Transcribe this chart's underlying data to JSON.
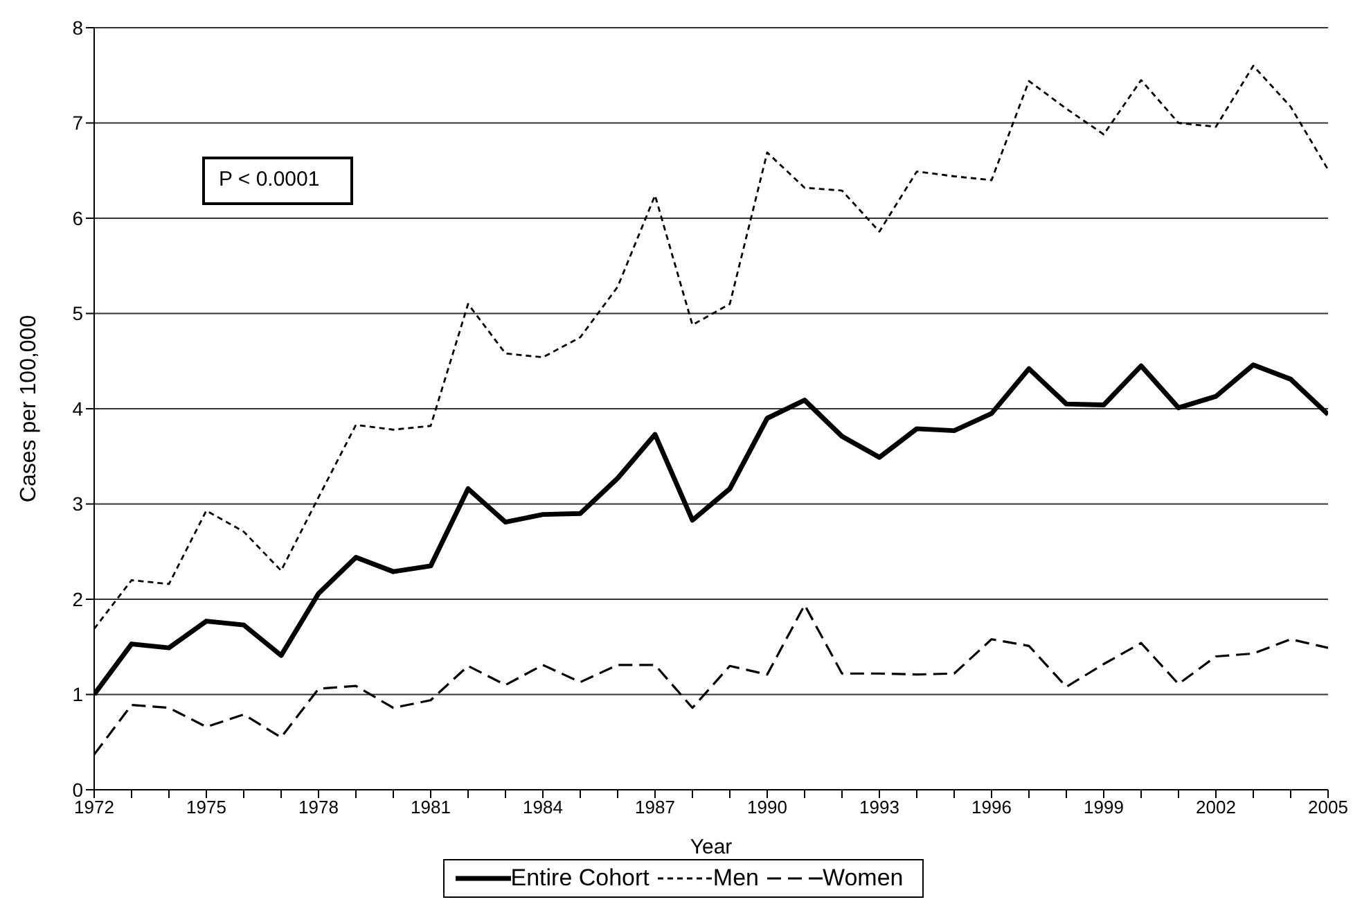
{
  "chart_data": {
    "type": "line",
    "xlabel": "Year",
    "ylabel": "Cases per 100,000",
    "x": [
      1972,
      1973,
      1974,
      1975,
      1976,
      1977,
      1978,
      1979,
      1980,
      1981,
      1982,
      1983,
      1984,
      1985,
      1986,
      1987,
      1988,
      1989,
      1990,
      1991,
      1992,
      1993,
      1994,
      1995,
      1996,
      1997,
      1998,
      1999,
      2000,
      2001,
      2002,
      2003,
      2004,
      2005
    ],
    "series": [
      {
        "name": "Entire Cohort",
        "color": "#000000",
        "line_style": "solid",
        "values": [
          1.0,
          1.53,
          1.49,
          1.77,
          1.73,
          1.41,
          2.06,
          2.44,
          2.29,
          2.35,
          3.16,
          2.81,
          2.89,
          2.9,
          3.27,
          3.73,
          2.83,
          3.16,
          3.9,
          4.09,
          3.71,
          3.49,
          3.79,
          3.77,
          3.95,
          4.42,
          4.05,
          4.04,
          4.45,
          4.01,
          4.13,
          4.46,
          4.31,
          3.94
        ]
      },
      {
        "name": "Men",
        "color": "#000000",
        "line_style": "dotted",
        "values": [
          1.69,
          2.2,
          2.16,
          2.93,
          2.71,
          2.3,
          3.07,
          3.83,
          3.78,
          3.82,
          5.1,
          4.58,
          4.54,
          4.75,
          5.28,
          6.24,
          4.88,
          5.1,
          6.69,
          6.32,
          6.29,
          5.86,
          6.49,
          6.44,
          6.4,
          7.44,
          7.15,
          6.88,
          7.45,
          7.0,
          6.96,
          7.6,
          7.17,
          6.51
        ]
      },
      {
        "name": "Women",
        "color": "#000000",
        "line_style": "dashed",
        "values": [
          0.37,
          0.89,
          0.86,
          0.66,
          0.79,
          0.55,
          1.06,
          1.09,
          0.86,
          0.94,
          1.3,
          1.1,
          1.31,
          1.13,
          1.31,
          1.31,
          0.86,
          1.3,
          1.21,
          1.94,
          1.22,
          1.22,
          1.21,
          1.22,
          1.58,
          1.51,
          1.08,
          1.32,
          1.54,
          1.11,
          1.4,
          1.43,
          1.58,
          1.49
        ]
      }
    ],
    "xlim": [
      1972,
      2005
    ],
    "xticks": [
      1972,
      {
        "value": 1973,
        "label": null
      },
      {
        "value": 1974,
        "label": null
      },
      1975,
      {
        "value": 1976,
        "label": null
      },
      {
        "value": 1977,
        "label": null
      },
      1978,
      {
        "value": 1979,
        "label": null
      },
      {
        "value": 1980,
        "label": null
      },
      1981,
      {
        "value": 1982,
        "label": null
      },
      {
        "value": 1983,
        "label": null
      },
      1984,
      {
        "value": 1985,
        "label": null
      },
      {
        "value": 1986,
        "label": null
      },
      1987,
      {
        "value": 1988,
        "label": null
      },
      {
        "value": 1989,
        "label": null
      },
      1990,
      {
        "value": 1991,
        "label": null
      },
      {
        "value": 1992,
        "label": null
      },
      1993,
      {
        "value": 1994,
        "label": null
      },
      {
        "value": 1995,
        "label": null
      },
      1996,
      {
        "value": 1997,
        "label": null
      },
      {
        "value": 1998,
        "label": null
      },
      1999,
      {
        "value": 2000,
        "label": null
      },
      {
        "value": 2001,
        "label": null
      },
      2002,
      {
        "value": 2003,
        "label": null
      },
      {
        "value": 2004,
        "label": null
      },
      2005
    ],
    "ylim": [
      0,
      8
    ],
    "yticks": [
      0,
      1,
      2,
      3,
      4,
      5,
      6,
      7,
      8
    ],
    "grid": "y",
    "legend": "bottom",
    "marker": "none",
    "annotations": [
      "P < 0.0001"
    ]
  }
}
